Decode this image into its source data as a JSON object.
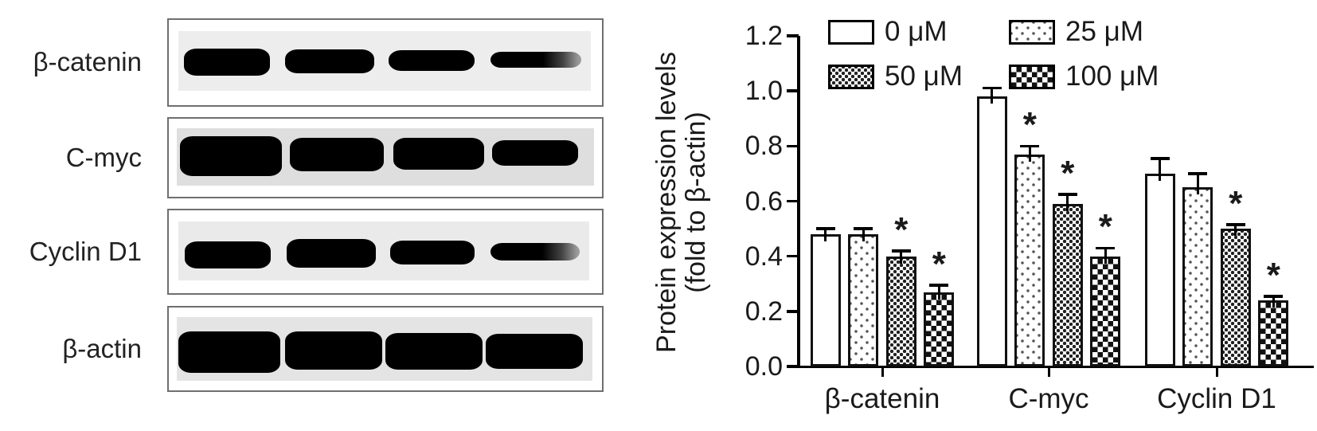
{
  "figure": {
    "blot_panel": {
      "rows": [
        {
          "label": "β-catenin"
        },
        {
          "label": "C-myc"
        },
        {
          "label": "Cyclin D1"
        },
        {
          "label": "β-actin"
        }
      ],
      "lanes_per_row": 4
    },
    "colors": {
      "ink": "#000000",
      "panel_border": "#6f6f6f",
      "blot_background": "#e8e8e8"
    }
  },
  "chart_data": {
    "type": "bar",
    "title": "",
    "ylabel_line1": "Protein expression levels",
    "ylabel_line2": "(fold to β-actin)",
    "xlabel": "",
    "categories": [
      "β-catenin",
      "C-myc",
      "Cyclin D1"
    ],
    "series": [
      {
        "name": "0 μM",
        "pattern": "plain",
        "values": [
          0.48,
          0.98,
          0.7
        ],
        "errors": [
          0.02,
          0.03,
          0.055
        ],
        "significant": [
          false,
          false,
          false
        ]
      },
      {
        "name": "25 μM",
        "pattern": "dots",
        "values": [
          0.48,
          0.77,
          0.65
        ],
        "errors": [
          0.02,
          0.03,
          0.05
        ],
        "significant": [
          false,
          true,
          false
        ]
      },
      {
        "name": "50 μM",
        "pattern": "fishnet",
        "values": [
          0.4,
          0.59,
          0.5
        ],
        "errors": [
          0.02,
          0.035,
          0.015
        ],
        "significant": [
          true,
          true,
          true
        ]
      },
      {
        "name": "100 μM",
        "pattern": "checker",
        "values": [
          0.27,
          0.4,
          0.24
        ],
        "errors": [
          0.025,
          0.03,
          0.015
        ],
        "significant": [
          true,
          true,
          true
        ]
      }
    ],
    "ylim": [
      0,
      1.2
    ],
    "yticks": [
      "0.0",
      "0.2",
      "0.4",
      "0.6",
      "0.8",
      "1.0",
      "1.2"
    ],
    "significance_marker": "*",
    "grid": false,
    "legend_position": "top"
  }
}
